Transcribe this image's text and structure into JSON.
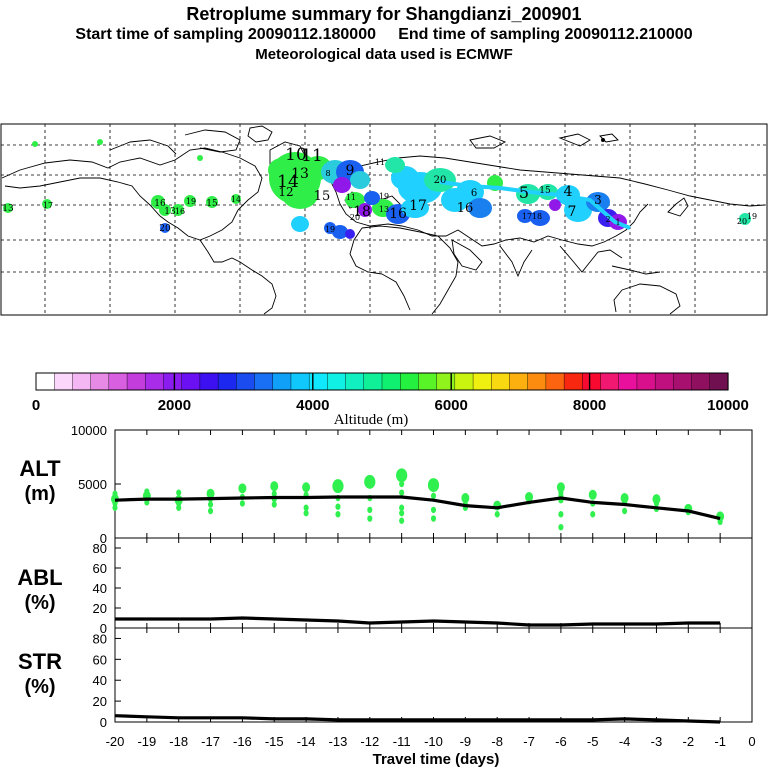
{
  "header": {
    "title": "Retroplume summary for Shangdianzi_200901",
    "sampling_line": "Start time of sampling 20090112.180000     End time of sampling 20090112.210000",
    "met_line": "Meteorological data used is ECMWF"
  },
  "colorbar": {
    "label": "Altitude (m)",
    "ticks": [
      "0",
      "2000",
      "4000",
      "6000",
      "8000",
      "10000"
    ],
    "colors": [
      "#ffffff",
      "#fbd8fb",
      "#f4b7f4",
      "#e68ae6",
      "#d860e0",
      "#c33cdc",
      "#a82ce8",
      "#8a1cf0",
      "#6a10f2",
      "#3c10f0",
      "#1c28f0",
      "#1a4cf0",
      "#1a70f4",
      "#10a0f8",
      "#10c8fc",
      "#10e8ff",
      "#10f0e4",
      "#10f0c0",
      "#10f098",
      "#10f070",
      "#24f040",
      "#58f428",
      "#90f41c",
      "#c8f410",
      "#f0f010",
      "#f8d810",
      "#fcb010",
      "#fc8c10",
      "#fc6410",
      "#f82810",
      "#f80a30",
      "#f01870",
      "#e8109c",
      "#d8108c",
      "#c01080",
      "#a81070",
      "#901060",
      "#701050"
    ]
  },
  "map": {
    "labels": [
      {
        "t": "10",
        "c": "#30ee48"
      },
      {
        "t": "11",
        "c": "#30ee48"
      },
      {
        "t": "14",
        "c": "#30ee48"
      },
      {
        "t": "15",
        "c": "#30ee48"
      },
      {
        "t": "13",
        "c": "#30ee48"
      },
      {
        "t": "12",
        "c": "#30ee48"
      },
      {
        "t": "9",
        "c": "#1a60f0"
      },
      {
        "t": "8",
        "c": "#2acbdc"
      },
      {
        "t": "11",
        "c": "#9018e8"
      },
      {
        "t": "19",
        "c": "#30ee48"
      },
      {
        "t": "18",
        "c": "#30ee48"
      },
      {
        "t": "20",
        "c": "#22e6a8"
      },
      {
        "t": "16",
        "c": "#1a60f0"
      },
      {
        "t": "17",
        "c": "#1a60f0"
      },
      {
        "t": "16",
        "c": "#22e6a8"
      },
      {
        "t": "6",
        "c": "#20d0ff"
      },
      {
        "t": "5",
        "c": "#20d0ff"
      },
      {
        "t": "4",
        "c": "#20d0ff"
      },
      {
        "t": "3",
        "c": "#1a80f0"
      },
      {
        "t": "7",
        "c": "#20d0ff"
      },
      {
        "t": "2",
        "c": "#3a20f0"
      },
      {
        "t": "1",
        "c": "#9018e8"
      },
      {
        "t": "16",
        "c": "#30ee48"
      },
      {
        "t": "13",
        "c": "#30ee48"
      },
      {
        "t": "15",
        "c": "#30ee48"
      },
      {
        "t": "14",
        "c": "#30ee48"
      },
      {
        "t": "17",
        "c": "#30ee48"
      },
      {
        "t": "13",
        "c": "#30ee48"
      },
      {
        "t": "20",
        "c": "#1a60f0"
      },
      {
        "t": "19",
        "c": "#30ee48"
      },
      {
        "t": "16",
        "c": "#20d0ff"
      },
      {
        "t": "15",
        "c": "#20d0ff"
      },
      {
        "t": "20",
        "c": "#22e6a8"
      },
      {
        "t": "19",
        "c": "#22e6a8"
      },
      {
        "t": "11",
        "c": "#20d0ff"
      },
      {
        "t": "13",
        "c": "#30ee48"
      },
      {
        "t": "17",
        "c": "#1a60f0"
      },
      {
        "t": "18",
        "c": "#1a60f0"
      },
      {
        "t": "19",
        "c": "#1a60f0"
      },
      {
        "t": "20",
        "c": "#20d0ff"
      }
    ]
  },
  "chart_data": [
    {
      "type": "line",
      "name": "ALT",
      "ylabel": "ALT\n(m)",
      "yticks": [
        "10000",
        "5000",
        "0"
      ],
      "ylim": [
        0,
        10000
      ],
      "x": [
        -20,
        -19,
        -18,
        -17,
        -16,
        -15,
        -14,
        -13,
        -12,
        -11,
        -10,
        -9,
        -8,
        -7,
        -6,
        -5,
        -4,
        -3,
        -2,
        -1
      ],
      "median": [
        3500,
        3600,
        3600,
        3650,
        3700,
        3750,
        3750,
        3800,
        3800,
        3800,
        3500,
        3000,
        2800,
        3300,
        3700,
        3300,
        3100,
        2800,
        2500,
        1800
      ],
      "points": [
        {
          "x": -20,
          "y": [
            3600,
            4100,
            3200,
            2800
          ]
        },
        {
          "x": -19,
          "y": [
            3900,
            3300,
            4300
          ]
        },
        {
          "x": -18,
          "y": [
            3500,
            4200,
            2800,
            3200
          ]
        },
        {
          "x": -17,
          "y": [
            4100,
            3600,
            3100,
            2500
          ]
        },
        {
          "x": -16,
          "y": [
            4600,
            3800,
            3200
          ]
        },
        {
          "x": -15,
          "y": [
            4800,
            4100,
            3600,
            3100
          ]
        },
        {
          "x": -14,
          "y": [
            4700,
            4000,
            2800,
            2300
          ]
        },
        {
          "x": -13,
          "y": [
            4800,
            3700,
            2900,
            2200
          ]
        },
        {
          "x": -12,
          "y": [
            5200,
            3700,
            2600,
            1800
          ]
        },
        {
          "x": -11,
          "y": [
            5800,
            5000,
            4200,
            2800,
            2300,
            1600
          ]
        },
        {
          "x": -10,
          "y": [
            4900,
            4600,
            3900,
            2600,
            1800
          ]
        },
        {
          "x": -9,
          "y": [
            3700,
            3100,
            2800
          ]
        },
        {
          "x": -8,
          "y": [
            3000,
            2200
          ]
        },
        {
          "x": -7,
          "y": [
            3800,
            3400
          ]
        },
        {
          "x": -6,
          "y": [
            4700,
            4200,
            3900,
            3500,
            2200,
            1000
          ]
        },
        {
          "x": -5,
          "y": [
            4000,
            3200,
            2200
          ]
        },
        {
          "x": -4,
          "y": [
            3700,
            3300,
            2500
          ]
        },
        {
          "x": -3,
          "y": [
            3600,
            3200,
            2700
          ]
        },
        {
          "x": -2,
          "y": [
            2700,
            2400
          ]
        },
        {
          "x": -1,
          "y": [
            2000,
            1700,
            1500
          ]
        }
      ]
    },
    {
      "type": "line",
      "name": "ABL",
      "ylabel": "ABL\n(%)",
      "yticks": [
        "80",
        "60",
        "40",
        "20",
        "0"
      ],
      "ylim": [
        0,
        90
      ],
      "x": [
        -20,
        -19,
        -18,
        -17,
        -16,
        -15,
        -14,
        -13,
        -12,
        -11,
        -10,
        -9,
        -8,
        -7,
        -6,
        -5,
        -4,
        -3,
        -2,
        -1
      ],
      "values": [
        9,
        9,
        9,
        9,
        10,
        9,
        8,
        7,
        5,
        6,
        7,
        6,
        5,
        3,
        3,
        4,
        4,
        4,
        5,
        5
      ]
    },
    {
      "type": "line",
      "name": "STR",
      "ylabel": "STR\n(%)",
      "yticks": [
        "80",
        "60",
        "40",
        "20",
        "0"
      ],
      "ylim": [
        0,
        90
      ],
      "x": [
        -20,
        -19,
        -18,
        -17,
        -16,
        -15,
        -14,
        -13,
        -12,
        -11,
        -10,
        -9,
        -8,
        -7,
        -6,
        -5,
        -4,
        -3,
        -2,
        -1
      ],
      "values": [
        6,
        5,
        4,
        4,
        4,
        3,
        3,
        2,
        2,
        2,
        2,
        2,
        2,
        2,
        2,
        2,
        3,
        2,
        1,
        0
      ]
    }
  ],
  "xaxis": {
    "ticks": [
      "-20",
      "-19",
      "-18",
      "-17",
      "-16",
      "-15",
      "-14",
      "-13",
      "-12",
      "-11",
      "-10",
      "-9",
      "-8",
      "-7",
      "-6",
      "-5",
      "-4",
      "-3",
      "-2",
      "-1",
      "0"
    ],
    "label": "Travel time (days)"
  }
}
